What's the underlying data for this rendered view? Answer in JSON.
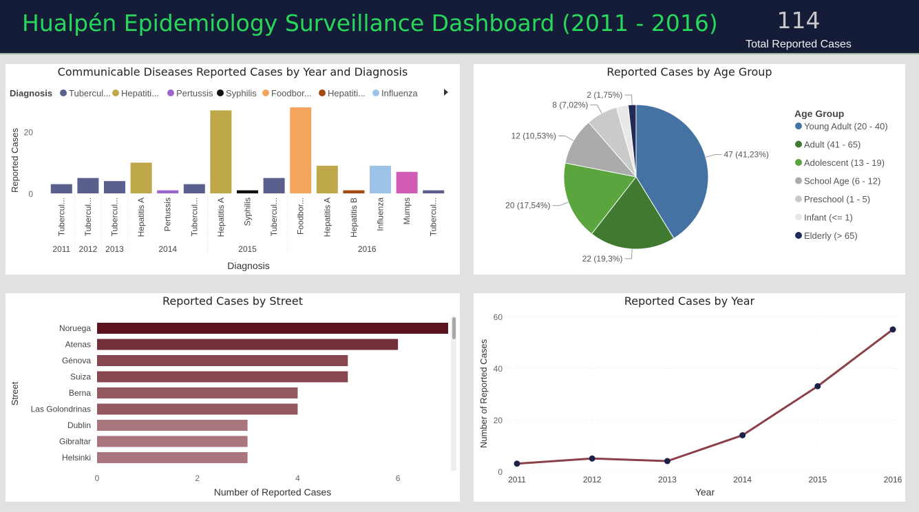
{
  "header": {
    "title": "Hualpén Epidemiology Surveillance Dashboard (2011 - 2016)",
    "kpi_value": "114",
    "kpi_label": "Total Reported Cases"
  },
  "colors": {
    "Tuberculosis": "#5a5f8e",
    "Hepatitis A": "#bfa84a",
    "Pertussis": "#9a66cc",
    "Syphilis": "#111111",
    "Foodborne": "#f4a65e",
    "Hepatitis B": "#a44a10",
    "Influenza": "#9dc3e8",
    "Mumps": "#d05cb6"
  },
  "chart_data": [
    {
      "type": "bar",
      "title": "Communicable Diseases Reported Cases by Year and Diagnosis",
      "xlabel": "Diagnosis",
      "ylabel": "Reported Cases",
      "ylim": [
        0,
        30
      ],
      "yticks": [
        0,
        20
      ],
      "legend_title": "Diagnosis",
      "legend": [
        {
          "label": "Tubercul...",
          "key": "Tuberculosis"
        },
        {
          "label": "Hepatiti...",
          "key": "Hepatitis A"
        },
        {
          "label": "Pertussis",
          "key": "Pertussis"
        },
        {
          "label": "Syphilis",
          "key": "Syphilis"
        },
        {
          "label": "Foodbor...",
          "key": "Foodborne"
        },
        {
          "label": "Hepatiti...",
          "key": "Hepatitis B"
        },
        {
          "label": "Influenza",
          "key": "Influenza"
        }
      ],
      "groups": [
        {
          "year": "2011",
          "count": 1
        },
        {
          "year": "2012",
          "count": 1
        },
        {
          "year": "2013",
          "count": 1
        },
        {
          "year": "2014",
          "count": 3
        },
        {
          "year": "2015",
          "count": 3
        },
        {
          "year": "2016",
          "count": 6
        }
      ],
      "bars": [
        {
          "label": "Tubercul...",
          "key": "Tuberculosis",
          "value": 3
        },
        {
          "label": "Tubercul...",
          "key": "Tuberculosis",
          "value": 5
        },
        {
          "label": "Tubercul...",
          "key": "Tuberculosis",
          "value": 4
        },
        {
          "label": "Hepatitis A",
          "key": "Hepatitis A",
          "value": 10
        },
        {
          "label": "Pertussis",
          "key": "Pertussis",
          "value": 1
        },
        {
          "label": "Tubercul...",
          "key": "Tuberculosis",
          "value": 3
        },
        {
          "label": "Hepatitis A",
          "key": "Hepatitis A",
          "value": 27
        },
        {
          "label": "Syphilis",
          "key": "Syphilis",
          "value": 1
        },
        {
          "label": "Tubercul...",
          "key": "Tuberculosis",
          "value": 5
        },
        {
          "label": "Foodbor...",
          "key": "Foodborne",
          "value": 28
        },
        {
          "label": "Hepatitis A",
          "key": "Hepatitis A",
          "value": 9
        },
        {
          "label": "Hepatitis B",
          "key": "Hepatitis B",
          "value": 1
        },
        {
          "label": "Influenza",
          "key": "Influenza",
          "value": 9
        },
        {
          "label": "Mumps",
          "key": "Mumps",
          "value": 7
        },
        {
          "label": "Tubercul...",
          "key": "Tuberculosis",
          "value": 1
        }
      ]
    },
    {
      "type": "pie",
      "title": "Reported Cases by Age Group",
      "legend_title": "Age Group",
      "legend_placement": "right",
      "slices": [
        {
          "name": "Young Adult (20 - 40)",
          "value": 47,
          "label": "47 (41,23%)",
          "color": "#4472a2"
        },
        {
          "name": "Adult (41 - 65)",
          "value": 22,
          "label": "22 (19,3%)",
          "color": "#3f7a30"
        },
        {
          "name": "Adolescent (13 - 19)",
          "value": 20,
          "label": "20 (17,54%)",
          "color": "#5aa53e"
        },
        {
          "name": "School Age (6 - 12)",
          "value": 12,
          "label": "12 (10,53%)",
          "color": "#ababab"
        },
        {
          "name": "Preschool (1 - 5)",
          "value": 8,
          "label": "8 (7,02%)",
          "color": "#cacaca"
        },
        {
          "name": "Infant (<= 1)",
          "value": 3,
          "label": "",
          "color": "#e8e8e8"
        },
        {
          "name": "Elderly (> 65)",
          "value": 2,
          "label": "2 (1,75%)",
          "color": "#222b55"
        }
      ]
    },
    {
      "type": "bar",
      "orientation": "horizontal",
      "title": "Reported Cases by Street",
      "xlabel": "Number of Reported Cases",
      "ylabel": "Street",
      "xlim": [
        0,
        7
      ],
      "xticks": [
        0,
        2,
        4,
        6
      ],
      "categories": [
        "Noruega",
        "Atenas",
        "Génova",
        "Suiza",
        "Berna",
        "Las Golondrinas",
        "Dublin",
        "Gibraltar",
        "Helsinki"
      ],
      "values": [
        7,
        6,
        5,
        5,
        4,
        4,
        3,
        3,
        3
      ],
      "colors": [
        "#5c1520",
        "#74303a",
        "#874650",
        "#874650",
        "#945860",
        "#945860",
        "#a8767c",
        "#a8767c",
        "#a8767c"
      ]
    },
    {
      "type": "line",
      "title": "Reported Cases by Year",
      "xlabel": "Year",
      "ylabel": "Number of Reported Cases",
      "ylim": [
        0,
        60
      ],
      "yticks": [
        0,
        20,
        40,
        60
      ],
      "x": [
        "2011",
        "2012",
        "2013",
        "2014",
        "2015",
        "2016"
      ],
      "values": [
        3,
        5,
        4,
        14,
        33,
        55
      ],
      "line_color": "#8c3f48",
      "marker_color": "#1b2148",
      "grid": true
    }
  ]
}
